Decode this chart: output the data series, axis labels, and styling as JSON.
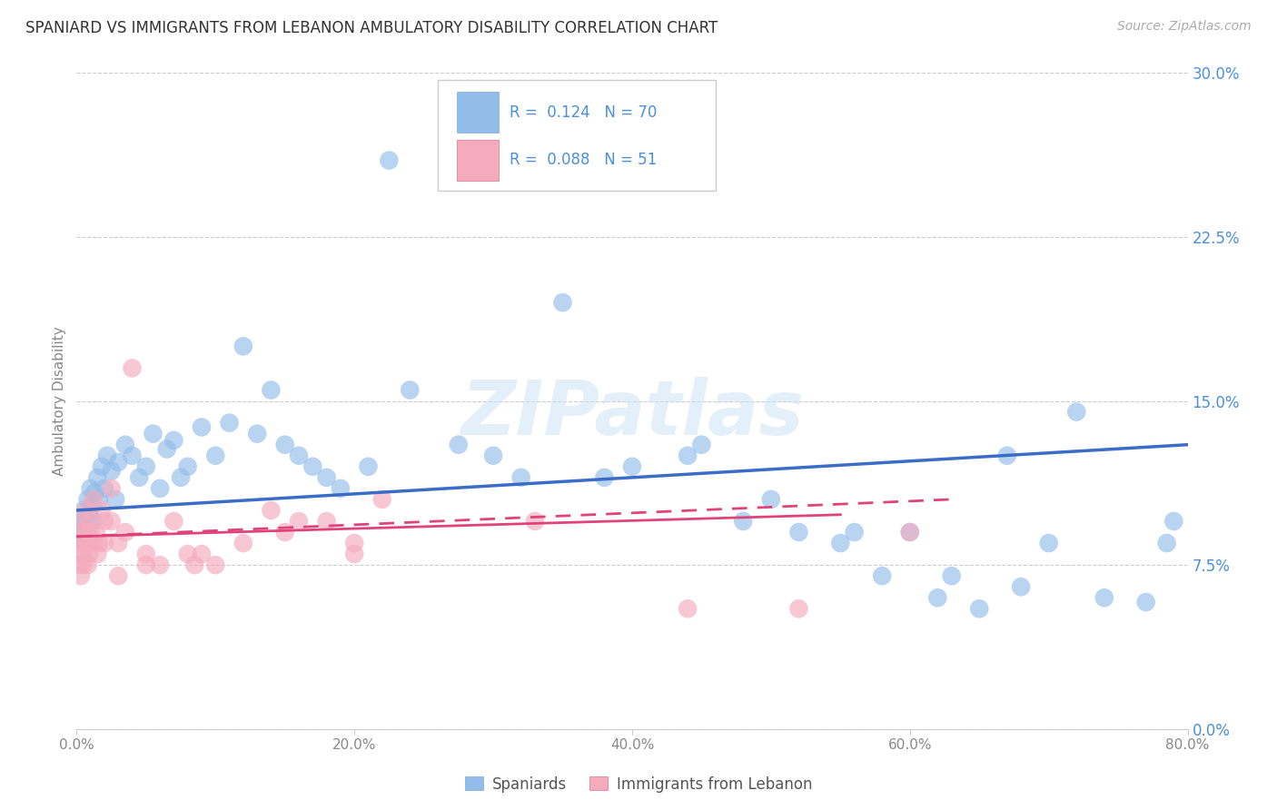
{
  "title": "SPANIARD VS IMMIGRANTS FROM LEBANON AMBULATORY DISABILITY CORRELATION CHART",
  "source": "Source: ZipAtlas.com",
  "ylabel_label": "Ambulatory Disability",
  "legend_labels": [
    "Spaniards",
    "Immigrants from Lebanon"
  ],
  "spaniards_color": "#92BDEA",
  "lebanon_color": "#F4ABBE",
  "trendline_spaniards_color": "#3B6CC8",
  "trendline_lebanon_color": "#E0437A",
  "R_spaniards": 0.124,
  "N_spaniards": 70,
  "R_lebanon": 0.088,
  "N_lebanon": 51,
  "background_color": "#ffffff",
  "grid_color": "#cccccc",
  "title_color": "#333333",
  "tick_label_color_right": "#4a90d9",
  "legend_text_color": "#4a90d9",
  "spaniards_x": [
    0.2,
    0.3,
    0.4,
    0.5,
    0.6,
    0.7,
    0.8,
    0.9,
    1.0,
    1.1,
    1.2,
    1.3,
    1.5,
    1.6,
    1.8,
    2.0,
    2.2,
    2.5,
    2.8,
    3.0,
    3.5,
    4.0,
    4.5,
    5.0,
    5.5,
    6.0,
    6.5,
    7.0,
    7.5,
    8.0,
    9.0,
    10.0,
    11.0,
    12.0,
    13.0,
    14.0,
    15.0,
    16.0,
    17.0,
    18.0,
    19.0,
    21.0,
    22.5,
    24.0,
    27.5,
    30.0,
    32.0,
    35.0,
    38.0,
    40.0,
    44.0,
    48.0,
    52.0,
    55.0,
    58.0,
    62.0,
    65.0,
    67.0,
    70.0,
    72.0,
    74.0,
    77.0,
    78.5,
    79.0,
    60.0,
    63.0,
    68.0,
    45.0,
    50.0,
    56.0
  ],
  "spaniards_y": [
    9.2,
    8.8,
    9.5,
    10.0,
    9.0,
    8.5,
    10.5,
    9.8,
    11.0,
    10.2,
    9.5,
    10.8,
    11.5,
    10.5,
    12.0,
    11.0,
    12.5,
    11.8,
    10.5,
    12.2,
    13.0,
    12.5,
    11.5,
    12.0,
    13.5,
    11.0,
    12.8,
    13.2,
    11.5,
    12.0,
    13.8,
    12.5,
    14.0,
    17.5,
    13.5,
    15.5,
    13.0,
    12.5,
    12.0,
    11.5,
    11.0,
    12.0,
    26.0,
    15.5,
    13.0,
    12.5,
    11.5,
    19.5,
    11.5,
    12.0,
    12.5,
    9.5,
    9.0,
    8.5,
    7.0,
    6.0,
    5.5,
    12.5,
    8.5,
    14.5,
    6.0,
    5.8,
    8.5,
    9.5,
    9.0,
    7.0,
    6.5,
    13.0,
    10.5,
    9.0
  ],
  "lebanon_x": [
    0.1,
    0.2,
    0.3,
    0.4,
    0.5,
    0.6,
    0.7,
    0.8,
    0.9,
    1.0,
    1.2,
    1.4,
    1.6,
    1.8,
    2.0,
    2.5,
    3.0,
    3.5,
    4.0,
    5.0,
    6.0,
    7.0,
    8.5,
    9.0,
    10.0,
    12.0,
    14.0,
    16.0,
    18.0,
    20.0,
    22.0,
    33.0,
    44.0,
    52.0,
    60.0,
    0.3,
    0.4,
    0.5,
    0.6,
    0.7,
    0.8,
    1.0,
    1.2,
    1.5,
    2.0,
    2.5,
    3.0,
    5.0,
    8.0,
    15.0,
    20.0
  ],
  "lebanon_y": [
    8.5,
    7.5,
    9.0,
    8.0,
    9.5,
    8.5,
    10.0,
    9.0,
    8.0,
    9.5,
    10.5,
    9.0,
    8.5,
    10.0,
    9.5,
    11.0,
    8.5,
    9.0,
    16.5,
    8.0,
    7.5,
    9.5,
    7.5,
    8.0,
    7.5,
    8.5,
    10.0,
    9.5,
    9.5,
    8.5,
    10.5,
    9.5,
    5.5,
    5.5,
    9.0,
    7.0,
    8.0,
    7.5,
    8.5,
    9.0,
    7.5,
    9.0,
    8.5,
    8.0,
    8.5,
    9.5,
    7.0,
    7.5,
    8.0,
    9.0,
    8.0
  ],
  "xmin": 0.0,
  "xmax": 80.0,
  "ymin": 0.0,
  "ymax": 30.0,
  "x_tick_vals": [
    0,
    20,
    40,
    60,
    80
  ],
  "y_tick_vals": [
    0.0,
    7.5,
    15.0,
    22.5,
    30.0
  ],
  "sp_trend_x0": 0.0,
  "sp_trend_x1": 80.0,
  "sp_trend_y0": 10.0,
  "sp_trend_y1": 13.0,
  "lb_trend_x0": 0.0,
  "lb_trend_x1": 63.0,
  "lb_trend_y0": 8.8,
  "lb_trend_y1": 10.5
}
